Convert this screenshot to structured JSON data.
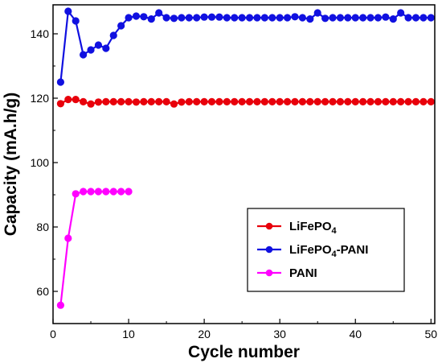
{
  "chart_data": {
    "type": "line",
    "xlabel": "Cycle number",
    "ylabel": "Capacity (mA.h/g)",
    "xlim": [
      0,
      50.5
    ],
    "ylim": [
      50,
      149
    ],
    "xticks": [
      0,
      10,
      20,
      30,
      40,
      50
    ],
    "yticks": [
      60,
      80,
      100,
      120,
      140
    ],
    "grid": false,
    "legend_position": "bottom-right",
    "series": [
      {
        "name": "LiFePO",
        "name_sub": "4",
        "name_suffix": "",
        "color": "#e8000b",
        "x": [
          1,
          2,
          3,
          4,
          5,
          6,
          7,
          8,
          9,
          10,
          11,
          12,
          13,
          14,
          15,
          16,
          17,
          18,
          19,
          20,
          21,
          22,
          23,
          24,
          25,
          26,
          27,
          28,
          29,
          30,
          31,
          32,
          33,
          34,
          35,
          36,
          37,
          38,
          39,
          40,
          41,
          42,
          43,
          44,
          45,
          46,
          47,
          48,
          49,
          50
        ],
        "y": [
          118.3,
          119.6,
          119.6,
          118.9,
          118.2,
          118.8,
          118.9,
          118.9,
          118.9,
          118.9,
          118.8,
          118.9,
          118.9,
          118.9,
          118.9,
          118.2,
          118.8,
          118.9,
          118.9,
          118.9,
          118.9,
          118.9,
          118.9,
          118.9,
          118.9,
          118.9,
          118.9,
          118.9,
          118.9,
          118.9,
          118.9,
          118.9,
          118.9,
          118.9,
          118.9,
          118.9,
          118.9,
          118.9,
          118.9,
          118.9,
          118.9,
          118.9,
          118.9,
          118.9,
          118.9,
          118.9,
          118.9,
          118.9,
          118.9,
          118.9
        ]
      },
      {
        "name": "LiFePO",
        "name_sub": "4",
        "name_suffix": "-PANI",
        "color": "#1010e0",
        "x": [
          1,
          2,
          3,
          4,
          5,
          6,
          7,
          8,
          9,
          10,
          11,
          12,
          13,
          14,
          15,
          16,
          17,
          18,
          19,
          20,
          21,
          22,
          23,
          24,
          25,
          26,
          27,
          28,
          29,
          30,
          31,
          32,
          33,
          34,
          35,
          36,
          37,
          38,
          39,
          40,
          41,
          42,
          43,
          44,
          45,
          46,
          47,
          48,
          49,
          50
        ],
        "y": [
          125.0,
          147.0,
          144.0,
          133.5,
          135.0,
          136.5,
          135.5,
          139.5,
          142.5,
          145.0,
          145.5,
          145.3,
          144.6,
          146.5,
          145.0,
          144.8,
          145.0,
          145.0,
          145.0,
          145.2,
          145.2,
          145.2,
          145.0,
          145.0,
          145.0,
          145.0,
          145.0,
          145.0,
          145.0,
          145.0,
          145.0,
          145.3,
          145.0,
          144.6,
          146.5,
          144.8,
          145.0,
          145.0,
          145.0,
          145.0,
          145.0,
          145.0,
          145.0,
          145.2,
          144.6,
          146.5,
          145.0,
          145.0,
          145.0,
          145.0
        ]
      },
      {
        "name": "PANI",
        "name_sub": "",
        "name_suffix": "",
        "color": "#ff00ff",
        "x": [
          1,
          2,
          3,
          4,
          5,
          6,
          7,
          8,
          9,
          10
        ],
        "y": [
          55.7,
          76.5,
          90.3,
          91.0,
          91.0,
          91.0,
          91.0,
          91.0,
          91.0,
          91.0
        ]
      }
    ]
  }
}
